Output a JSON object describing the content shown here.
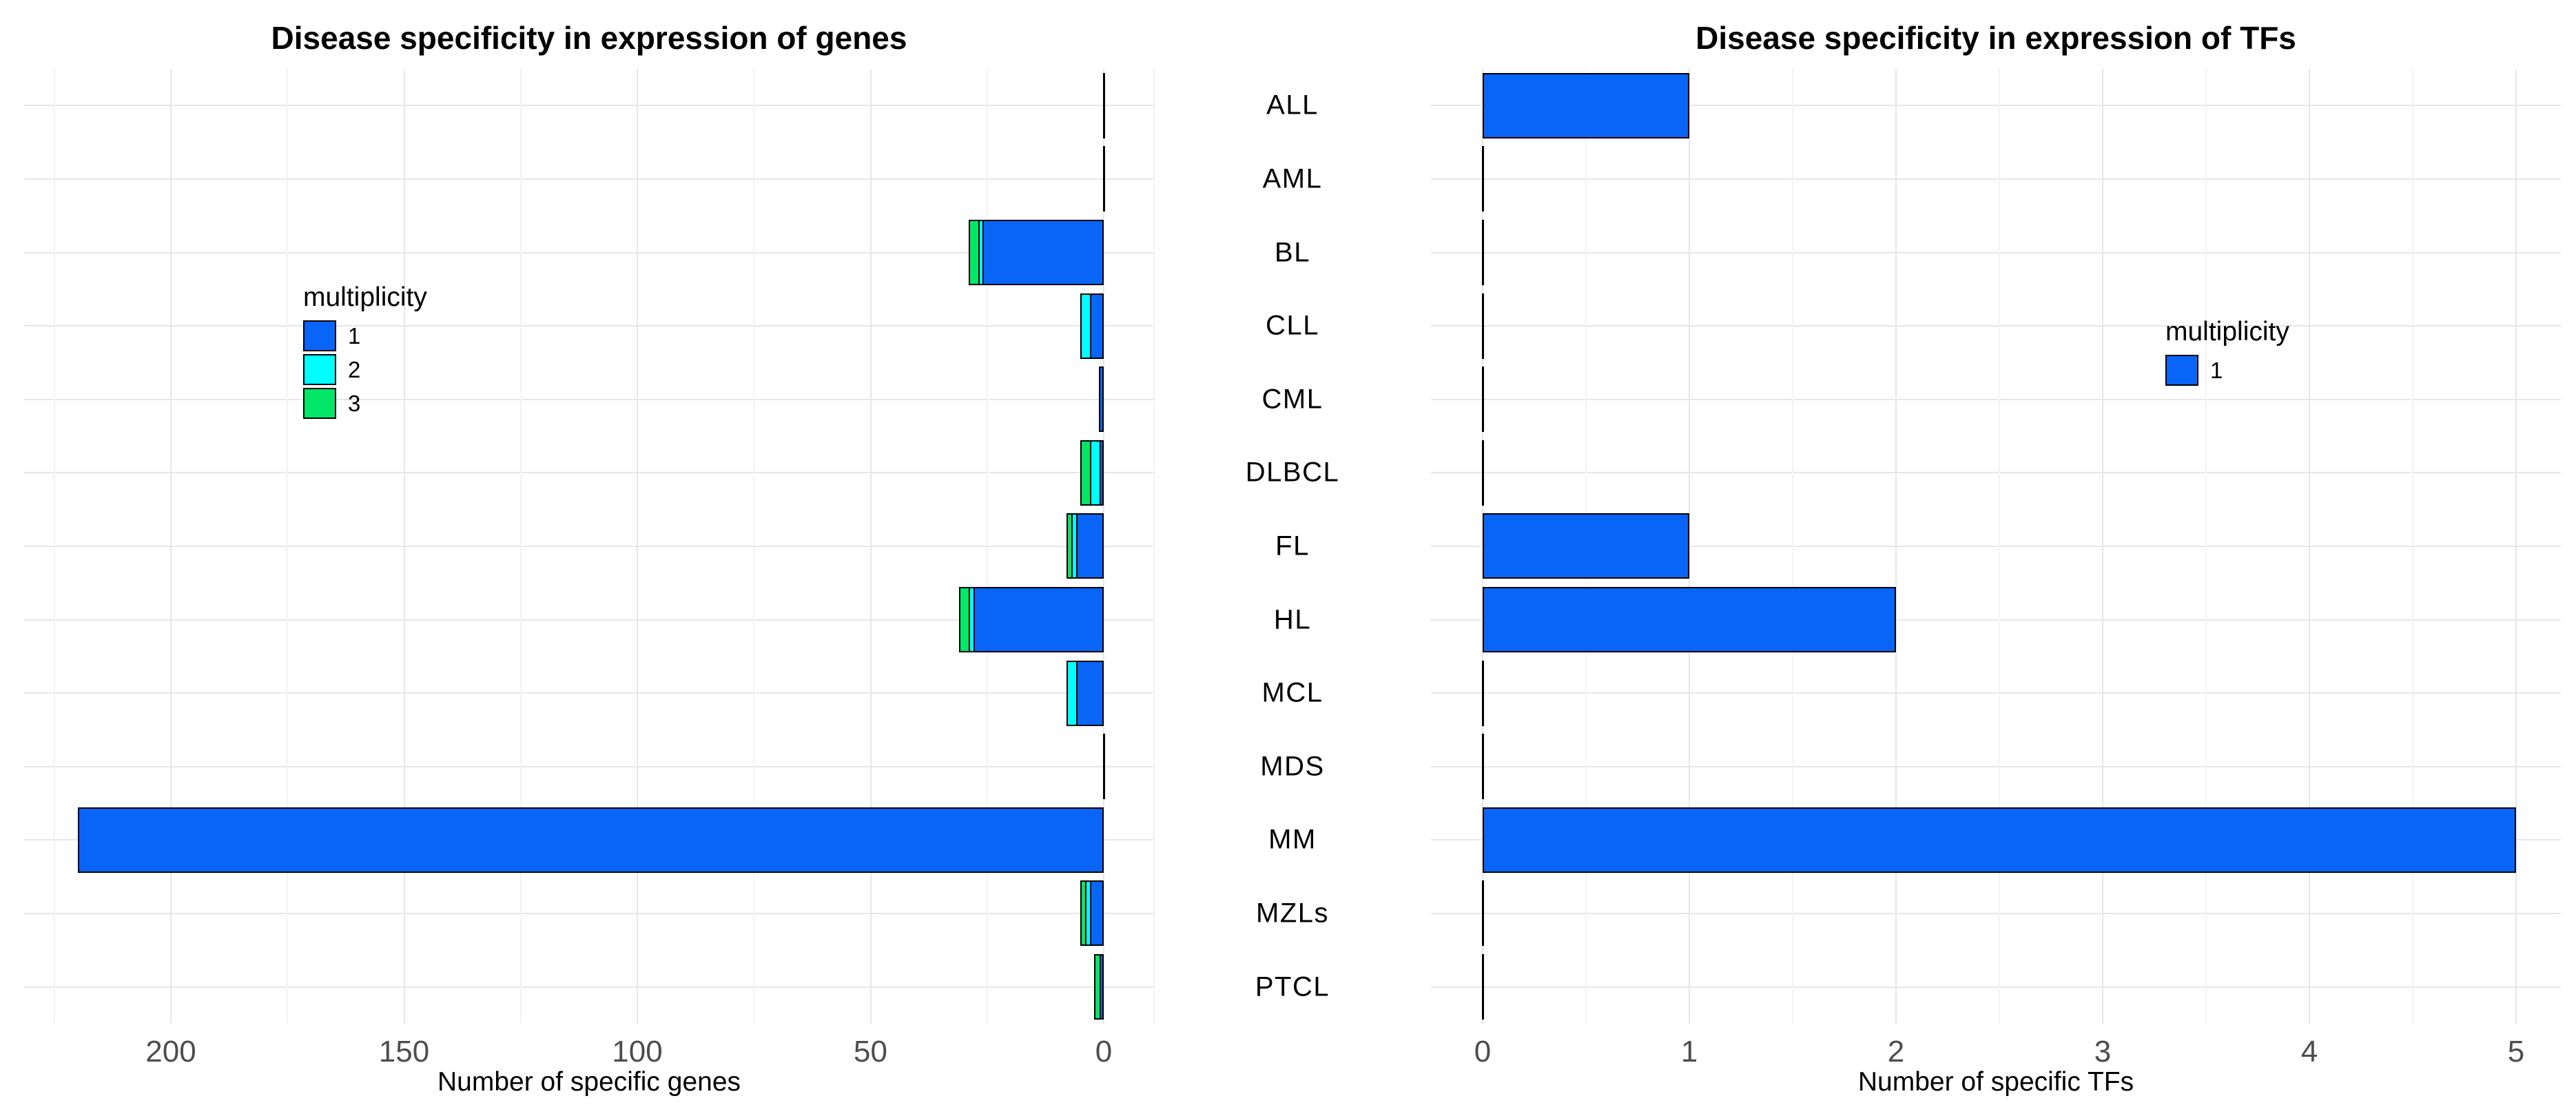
{
  "categories": [
    "ALL",
    "AML",
    "BL",
    "CLL",
    "CML",
    "DLBCL",
    "FL",
    "HL",
    "MCL",
    "MDS",
    "MM",
    "MZLs",
    "PTCL"
  ],
  "styles": {
    "background": "#FFFFFF",
    "bar_border": "#000000",
    "grid_major": "#E6E6E6",
    "grid_minor": "#F3F3F3",
    "tick_color": "#4D4D4D",
    "text_color": "#000000",
    "multiplicity_1_color": "#0865F7",
    "multiplicity_2_color": "#00FFFF",
    "multiplicity_3_color": "#00E667"
  },
  "chart_data": [
    {
      "id": "genes",
      "type": "bar",
      "orientation": "horizontal",
      "stacked": true,
      "axis_reversed": true,
      "grid": true,
      "title": "Disease specificity in expression of genes",
      "xlabel": "Number of specific genes",
      "categories": [
        "ALL",
        "AML",
        "BL",
        "CLL",
        "CML",
        "DLBCL",
        "FL",
        "HL",
        "MCL",
        "MDS",
        "MM",
        "MZLs",
        "PTCL"
      ],
      "series": [
        {
          "name": "1",
          "color": "#0865F7",
          "values": [
            0,
            0,
            26,
            3,
            1,
            1,
            6,
            28,
            6,
            0,
            220,
            3,
            1
          ]
        },
        {
          "name": "2",
          "color": "#00FFFF",
          "values": [
            0,
            0,
            1,
            2,
            0,
            2,
            1,
            1,
            2,
            0,
            0,
            1,
            0
          ]
        },
        {
          "name": "3",
          "color": "#00E667",
          "values": [
            0,
            0,
            2,
            0,
            0,
            2,
            1,
            2,
            0,
            0,
            0,
            1,
            1
          ]
        }
      ],
      "xticks": [
        0,
        50,
        100,
        150,
        200
      ],
      "xminor": [
        25,
        75,
        125,
        175,
        225
      ],
      "xlim": [
        0,
        220
      ],
      "legend": {
        "title": "multiplicity",
        "position": "inside-left",
        "items": [
          {
            "label": "1",
            "color": "#0865F7"
          },
          {
            "label": "2",
            "color": "#00FFFF"
          },
          {
            "label": "3",
            "color": "#00E667"
          }
        ]
      }
    },
    {
      "id": "tfs",
      "type": "bar",
      "orientation": "horizontal",
      "stacked": true,
      "axis_reversed": false,
      "grid": true,
      "title": "Disease specificity in expression of TFs",
      "xlabel": "Number of specific TFs",
      "categories": [
        "ALL",
        "AML",
        "BL",
        "CLL",
        "CML",
        "DLBCL",
        "FL",
        "HL",
        "MCL",
        "MDS",
        "MM",
        "MZLs",
        "PTCL"
      ],
      "series": [
        {
          "name": "1",
          "color": "#0865F7",
          "values": [
            1,
            0,
            0,
            0,
            0,
            0,
            1,
            2,
            0,
            0,
            5,
            0,
            0
          ]
        }
      ],
      "xticks": [
        0,
        1,
        2,
        3,
        4,
        5
      ],
      "xminor": [
        0.5,
        1.5,
        2.5,
        3.5,
        4.5
      ],
      "xlim": [
        0,
        5
      ],
      "legend": {
        "title": "multiplicity",
        "position": "inside-right",
        "items": [
          {
            "label": "1",
            "color": "#0865F7"
          }
        ]
      }
    }
  ]
}
